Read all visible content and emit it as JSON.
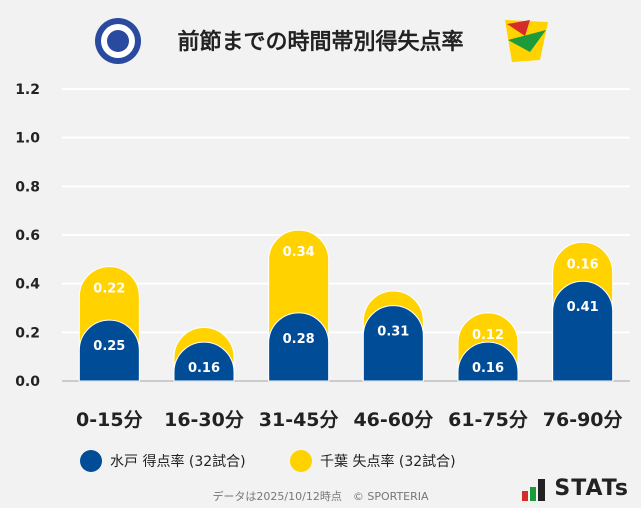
{
  "header": {
    "title": "前節までの時間帯別得失点率"
  },
  "legend": [
    {
      "label": "水戸 得点率 (32試合)",
      "color": "#004c97"
    },
    {
      "label": "千葉 失点率 (32試合)",
      "color": "#ffd200"
    }
  ],
  "footer": {
    "text": "データは2025/10/12時点　© SPORTERIA"
  },
  "brand": {
    "text": "STATs"
  },
  "chart_data": {
    "type": "bar",
    "stacked": true,
    "categories": [
      "0-15分",
      "16-30分",
      "31-45分",
      "46-60分",
      "61-75分",
      "76-90分"
    ],
    "series": [
      {
        "name": "水戸 得点率 (32試合)",
        "values": [
          0.25,
          0.16,
          0.28,
          0.31,
          0.16,
          0.41
        ],
        "color": "#004c97"
      },
      {
        "name": "千葉 失点率 (32試合)",
        "values": [
          0.22,
          0.06,
          0.34,
          0.06,
          0.12,
          0.16
        ],
        "color": "#ffd200"
      }
    ],
    "data_labels": [
      [
        "0.25",
        "0.16",
        "0.28",
        "0.31",
        "0.16",
        "0.41"
      ],
      [
        "0.22",
        "",
        "0.34",
        "",
        "0.12",
        "0.16"
      ]
    ],
    "yticks": [
      "0.0",
      "0.2",
      "0.4",
      "0.6",
      "0.8",
      "1.0",
      "1.2"
    ],
    "ylim": [
      0,
      1.2
    ],
    "grid": true
  }
}
